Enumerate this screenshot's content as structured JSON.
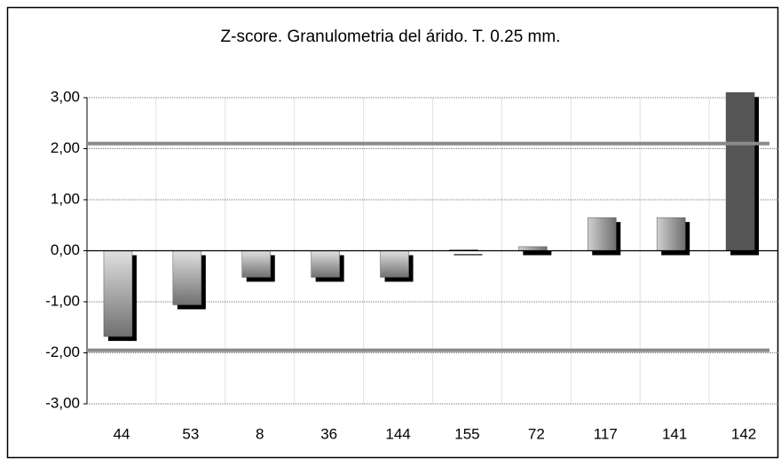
{
  "chart_data": {
    "type": "bar",
    "title": "Z-score.  Granulometria del árido. T. 0.25 mm.",
    "categories": [
      "44",
      "53",
      "8",
      "36",
      "144",
      "155",
      "72",
      "117",
      "141",
      "142"
    ],
    "values": [
      -1.68,
      -1.06,
      -0.52,
      -0.52,
      -0.52,
      0.02,
      0.08,
      0.65,
      0.65,
      3.1
    ],
    "color": "#8c8c8c",
    "highlight_color": "#555555",
    "reference_lines": [
      2.1,
      -1.95
    ],
    "reference_color": "#8a8a8a",
    "ylim": [
      -3,
      3
    ],
    "yticks": [
      {
        "value": -3,
        "label": "-3,00"
      },
      {
        "value": -2,
        "label": "-2,00"
      },
      {
        "value": -1,
        "label": "-1,00"
      },
      {
        "value": 0,
        "label": "0,00"
      },
      {
        "value": 1,
        "label": "1,00"
      },
      {
        "value": 2,
        "label": "2,00"
      },
      {
        "value": 3,
        "label": "3,00"
      }
    ],
    "grid": true
  }
}
